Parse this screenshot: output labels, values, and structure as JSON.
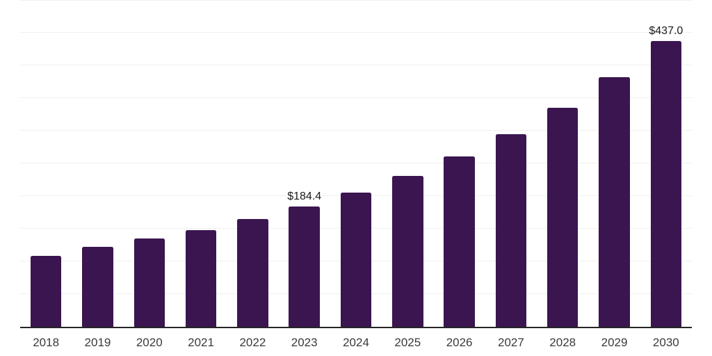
{
  "chart_data": {
    "type": "bar",
    "title": "",
    "xlabel": "",
    "ylabel": "",
    "categories": [
      "2018",
      "2019",
      "2020",
      "2021",
      "2022",
      "2023",
      "2024",
      "2025",
      "2026",
      "2027",
      "2028",
      "2029",
      "2030"
    ],
    "values": [
      108.5,
      122.3,
      135.1,
      147.9,
      164.9,
      184.4,
      205.3,
      230.9,
      260.6,
      294.7,
      335.1,
      381.9,
      437.0
    ],
    "data_labels": [
      "",
      "",
      "",
      "",
      "",
      "$184.4",
      "",
      "",
      "",
      "",
      "",
      "",
      "$437.0"
    ],
    "ylim": [
      0,
      500
    ],
    "grid_step": 50,
    "grid": "horizontal-only",
    "legend": "none",
    "y_axis_tick_labels": "none",
    "colors": {
      "background": "#ffffff",
      "bar": "#3A1550",
      "axis_line": "#262626",
      "gridline": "#F0F0F0",
      "tick_label": "#3A3A3A",
      "data_label": "#1A1A1A"
    }
  }
}
